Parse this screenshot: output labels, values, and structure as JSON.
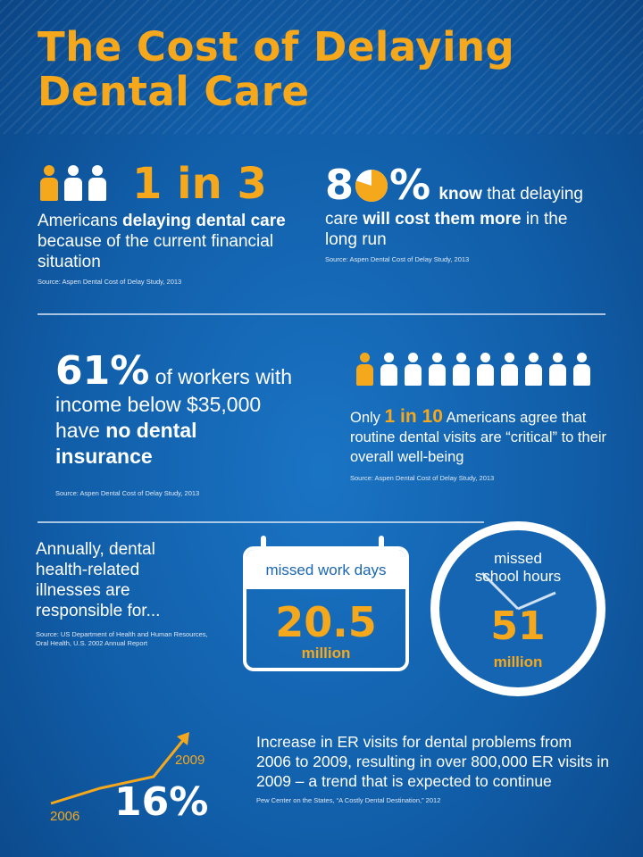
{
  "title": {
    "line1": "The Cost of Delaying",
    "line2": "Dental Care"
  },
  "colors": {
    "accent": "#f6a81c",
    "background": "#115ea9",
    "text": "#ffffff"
  },
  "stat1": {
    "headline": "1 in 3",
    "icons": {
      "highlighted": 1,
      "total": 3
    },
    "pre": "Americans ",
    "bold": "delaying dental care",
    "post": " because of the current financial situation",
    "source": "Source: Aspen Dental Cost of Delay Study, 2013"
  },
  "stat2": {
    "headline_a": "8",
    "headline_b": "%",
    "pie_percent": 80,
    "know": "know",
    "pre": " that delaying care ",
    "bold": "will cost them more",
    "post": " in the long run",
    "source": "Source: Aspen Dental Cost of Delay Study, 2013"
  },
  "stat3": {
    "headline": "61%",
    "pre": " of workers with income below $35,000 have ",
    "bold1": "no",
    "bold2": "dental insurance",
    "source": "Source: Aspen Dental Cost of Delay Study, 2013"
  },
  "stat4": {
    "icons": {
      "highlighted": 1,
      "total": 10
    },
    "pre": "Only ",
    "headline": "1 in 10",
    "post": " Americans agree that routine dental visits are “critical” to their overall well-being",
    "source": "Source: Aspen Dental Cost of Delay Study, 2013"
  },
  "stat5": {
    "intro": "Annually, dental health-related illnesses are responsible for...",
    "source": "Source: US Department of Health and Human Resources, Oral Health, U.S. 2002 Annual Report",
    "work": {
      "label": "missed work days",
      "value": "20.5",
      "unit": "million"
    },
    "school": {
      "label1": "missed",
      "label2": "school hours",
      "value": "51",
      "unit": "million"
    }
  },
  "stat6": {
    "year_start": "2006",
    "year_end": "2009",
    "headline": "16%",
    "text": "Increase in ER visits for dental problems from 2006 to 2009, resulting in over 800,000 ER visits in 2009 – a trend that is expected to continue",
    "source": "Pew Center on the States, “A Costly Dental Destination,” 2012"
  }
}
